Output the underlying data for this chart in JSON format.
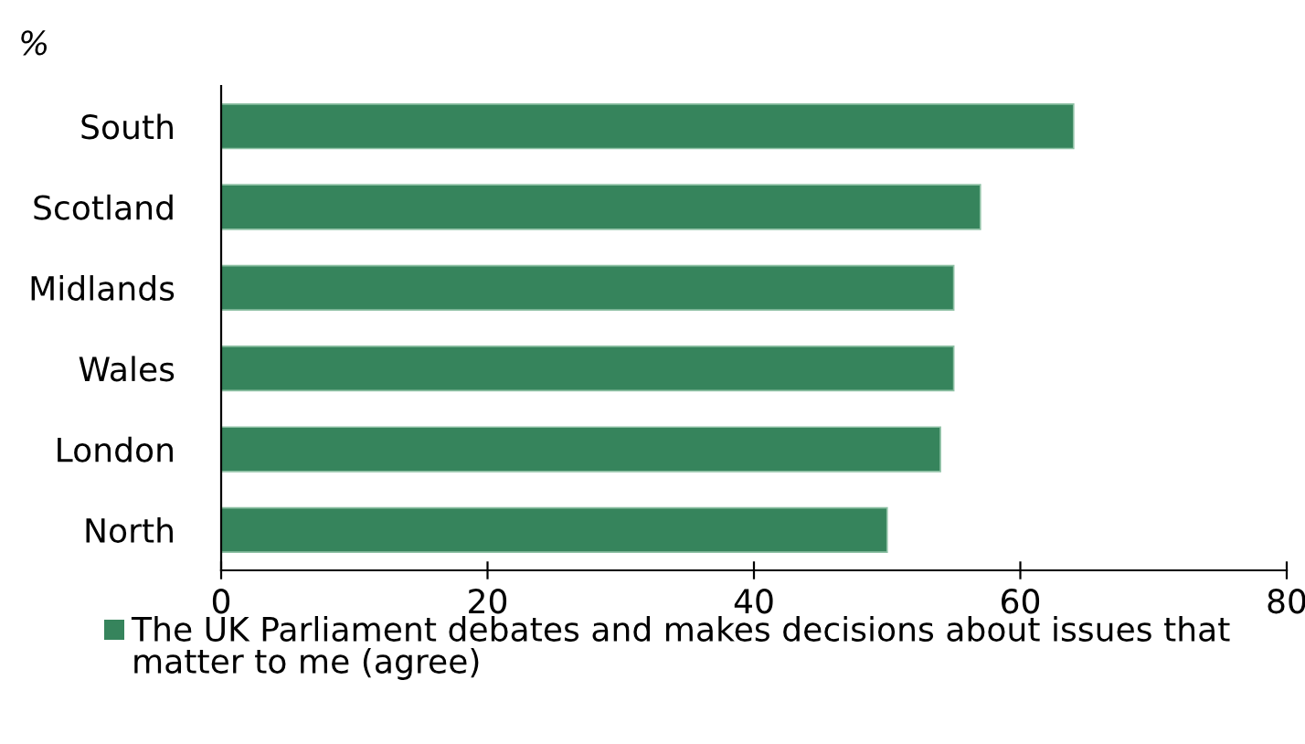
{
  "chart_data": {
    "type": "bar",
    "orientation": "horizontal",
    "ylabel": "%",
    "categories": [
      "South",
      "Scotland",
      "Midlands",
      "Wales",
      "London",
      "North"
    ],
    "series": [
      {
        "name": "The UK Parliament debates and makes decisions about issues that matter to me (agree)",
        "color": "#36845c",
        "values": [
          64,
          57,
          55,
          55,
          54,
          50
        ]
      }
    ],
    "xlim": [
      0,
      80
    ],
    "xticks": [
      0,
      20,
      40,
      60,
      80
    ],
    "grid": false,
    "legend": "bottom"
  }
}
